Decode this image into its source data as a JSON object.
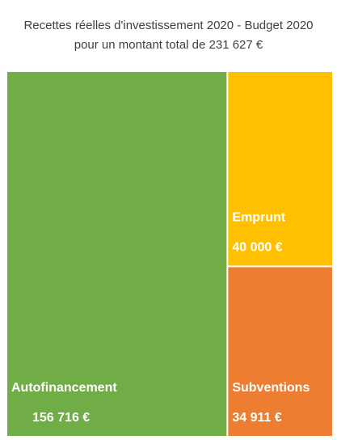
{
  "chart_data": {
    "type": "treemap",
    "title": "Recettes réelles d'investissement 2020 - Budget 2020 pour un montant total de 231 627 €",
    "categories": [
      "Autofinancement",
      "Emprunt",
      "Subventions"
    ],
    "values": [
      156716,
      40000,
      34911
    ],
    "value_labels": [
      "156 716 €",
      "40 000 €",
      "34 911 €"
    ],
    "colors": [
      "#70ad47",
      "#ffc000",
      "#ed7d31"
    ]
  }
}
